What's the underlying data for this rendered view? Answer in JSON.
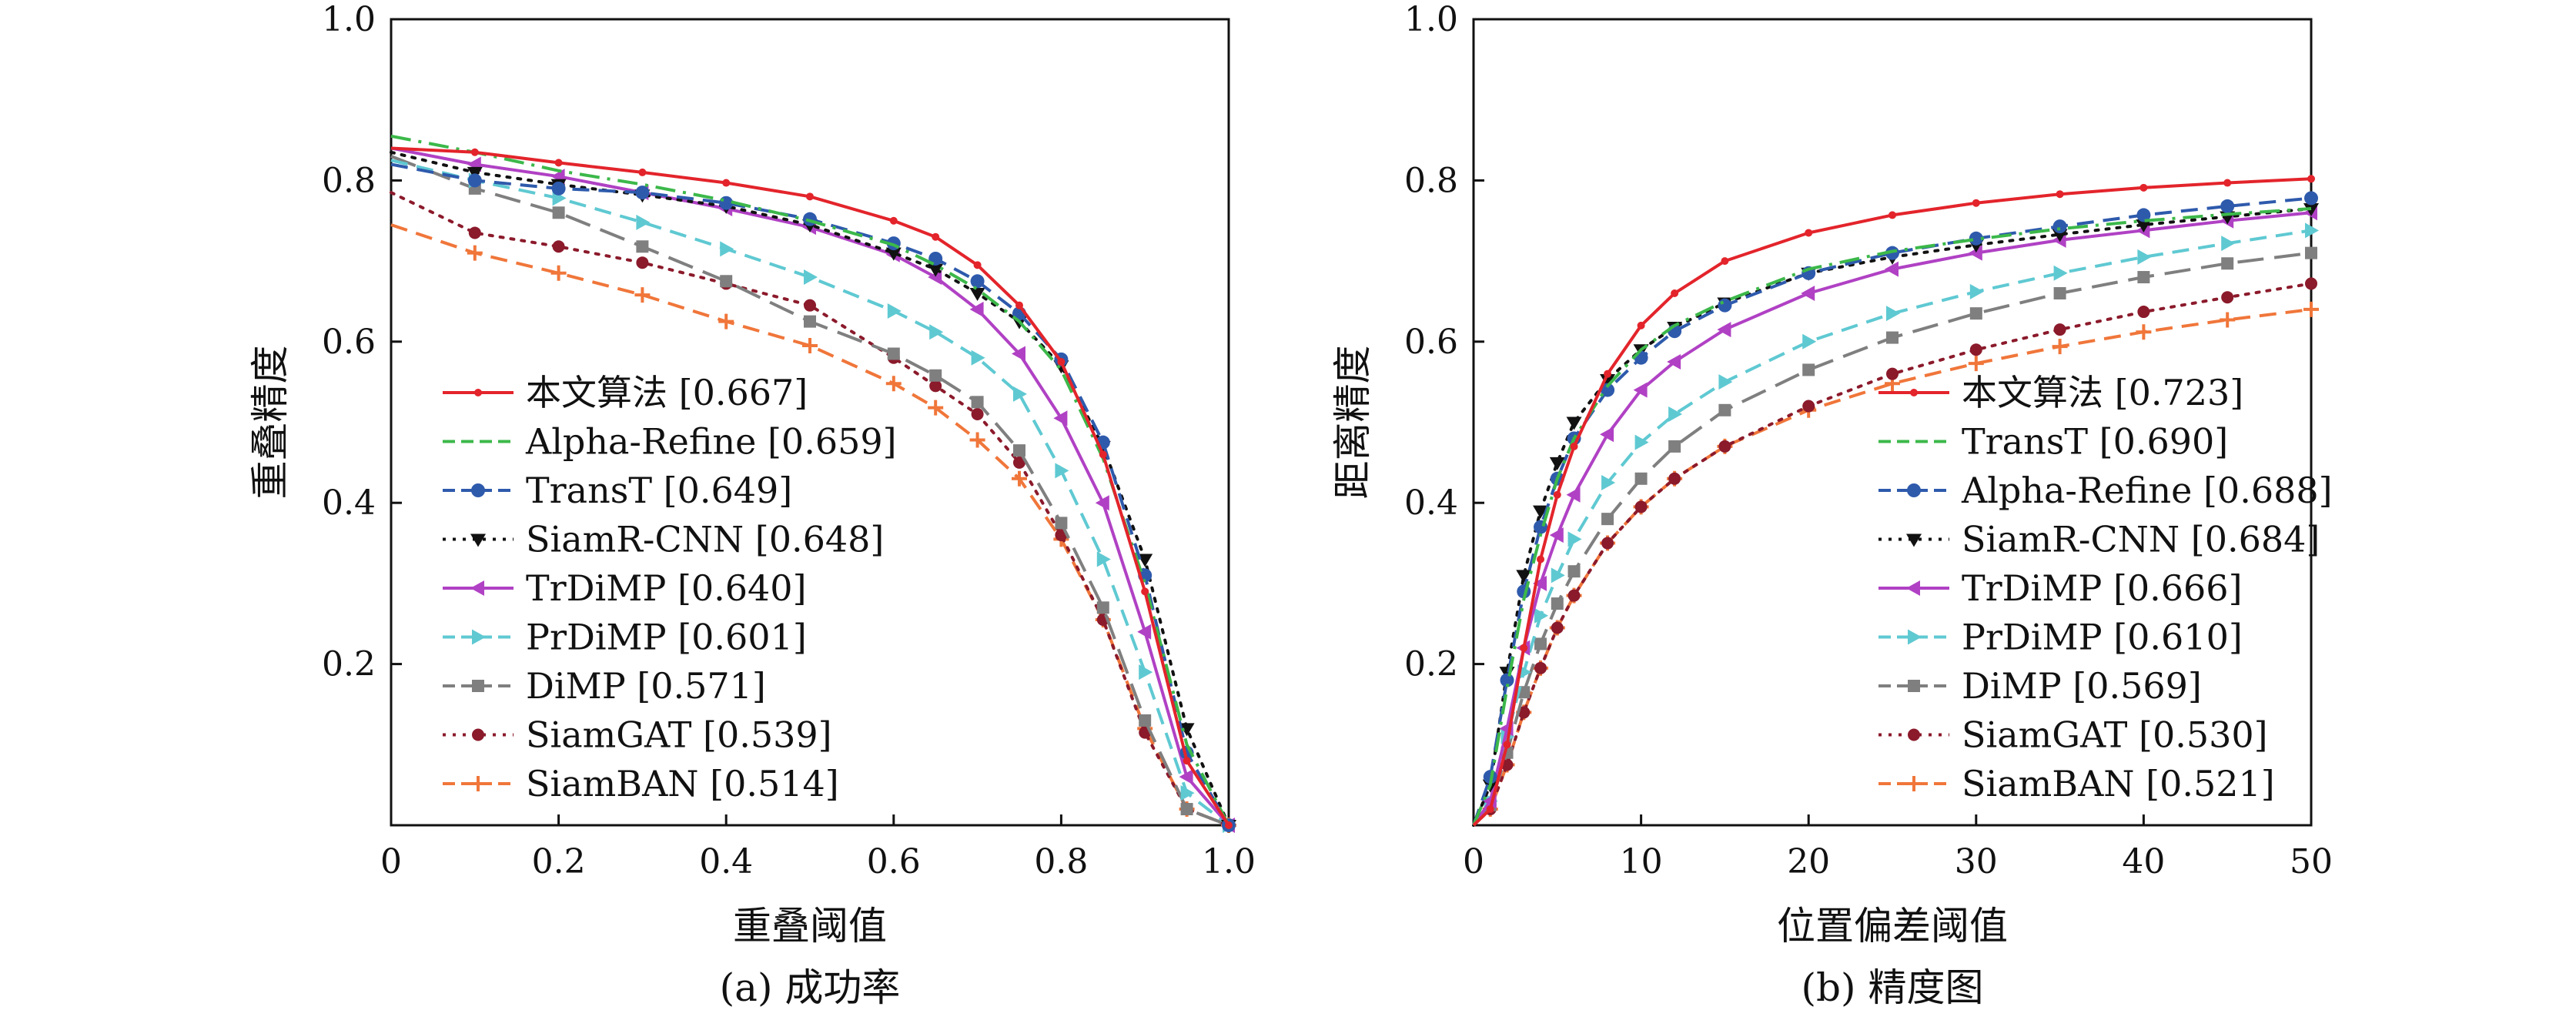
{
  "chart_data": [
    {
      "type": "line",
      "id": "success",
      "caption": "(a)  成功率",
      "title": "",
      "xlabel": "重叠阈值",
      "ylabel": "重叠精度",
      "xlim": [
        0,
        1.0
      ],
      "ylim": [
        0,
        1.0
      ],
      "xticks": [
        0,
        0.2,
        0.4,
        0.6,
        0.8,
        1.0
      ],
      "xtick_labels": [
        "0",
        "0.2",
        "0.4",
        "0.6",
        "0.8",
        "1.0"
      ],
      "yticks": [
        0.2,
        0.4,
        0.6,
        0.8,
        1.0
      ],
      "ytick_labels": [
        "0.2",
        "0.4",
        "0.6",
        "0.8",
        "1.0"
      ],
      "grid": false,
      "legend_position": "bottom-left",
      "series": [
        {
          "name": "本文算法 [0.667]",
          "color": "#e3242b",
          "dash": "solid",
          "marker": "dot",
          "x": [
            0,
            0.1,
            0.2,
            0.3,
            0.4,
            0.5,
            0.6,
            0.65,
            0.7,
            0.75,
            0.8,
            0.85,
            0.9,
            0.95,
            1.0
          ],
          "y": [
            0.84,
            0.835,
            0.822,
            0.81,
            0.797,
            0.78,
            0.75,
            0.73,
            0.695,
            0.645,
            0.575,
            0.46,
            0.29,
            0.08,
            0.0
          ]
        },
        {
          "name": "Alpha-Refine [0.659]",
          "color": "#3cb84a",
          "dash": "dashdot",
          "marker": "none",
          "x": [
            0,
            0.1,
            0.2,
            0.3,
            0.4,
            0.5,
            0.6,
            0.65,
            0.7,
            0.75,
            0.8,
            0.85,
            0.9,
            0.95,
            1.0
          ],
          "y": [
            0.855,
            0.835,
            0.812,
            0.795,
            0.775,
            0.75,
            0.72,
            0.695,
            0.665,
            0.625,
            0.565,
            0.455,
            0.3,
            0.1,
            0.0
          ]
        },
        {
          "name": "TransT [0.649]",
          "color": "#2e5aac",
          "dash": "dashed",
          "marker": "circle",
          "x": [
            0,
            0.1,
            0.2,
            0.3,
            0.4,
            0.5,
            0.6,
            0.65,
            0.7,
            0.75,
            0.8,
            0.85,
            0.9,
            0.95,
            1.0
          ],
          "y": [
            0.82,
            0.8,
            0.79,
            0.785,
            0.772,
            0.752,
            0.722,
            0.703,
            0.675,
            0.635,
            0.578,
            0.475,
            0.31,
            0.09,
            0.0
          ]
        },
        {
          "name": "SiamR-CNN [0.648]",
          "color": "#111111",
          "dash": "dotted",
          "marker": "triangle-down",
          "x": [
            0,
            0.1,
            0.2,
            0.3,
            0.4,
            0.5,
            0.6,
            0.65,
            0.7,
            0.75,
            0.8,
            0.85,
            0.9,
            0.95,
            1.0
          ],
          "y": [
            0.835,
            0.81,
            0.795,
            0.782,
            0.768,
            0.745,
            0.71,
            0.69,
            0.66,
            0.625,
            0.57,
            0.47,
            0.33,
            0.12,
            0.0
          ]
        },
        {
          "name": "TrDiMP [0.640]",
          "color": "#b041c4",
          "dash": "solid",
          "marker": "triangle-left",
          "x": [
            0,
            0.1,
            0.2,
            0.3,
            0.4,
            0.5,
            0.6,
            0.65,
            0.7,
            0.75,
            0.8,
            0.85,
            0.9,
            0.95,
            1.0
          ],
          "y": [
            0.84,
            0.82,
            0.805,
            0.785,
            0.765,
            0.742,
            0.708,
            0.68,
            0.64,
            0.585,
            0.505,
            0.4,
            0.24,
            0.06,
            0.0
          ]
        },
        {
          "name": "PrDiMP [0.601]",
          "color": "#5fc9d2",
          "dash": "dashed",
          "marker": "triangle-right",
          "x": [
            0,
            0.1,
            0.2,
            0.3,
            0.4,
            0.5,
            0.6,
            0.65,
            0.7,
            0.75,
            0.8,
            0.85,
            0.9,
            0.95,
            1.0
          ],
          "y": [
            0.825,
            0.8,
            0.778,
            0.748,
            0.715,
            0.68,
            0.638,
            0.612,
            0.58,
            0.535,
            0.44,
            0.33,
            0.19,
            0.04,
            0.0
          ]
        },
        {
          "name": "DiMP [0.571]",
          "color": "#7f7f7f",
          "dash": "longdash",
          "marker": "square",
          "x": [
            0,
            0.1,
            0.2,
            0.3,
            0.4,
            0.5,
            0.6,
            0.65,
            0.7,
            0.75,
            0.8,
            0.85,
            0.9,
            0.95,
            1.0
          ],
          "y": [
            0.83,
            0.79,
            0.76,
            0.718,
            0.675,
            0.625,
            0.585,
            0.558,
            0.525,
            0.465,
            0.375,
            0.27,
            0.13,
            0.02,
            0.0
          ]
        },
        {
          "name": "SiamGAT [0.539]",
          "color": "#8b1a2b",
          "dash": "dotted",
          "marker": "hexagon",
          "x": [
            0,
            0.1,
            0.2,
            0.3,
            0.4,
            0.5,
            0.6,
            0.65,
            0.7,
            0.75,
            0.8,
            0.85,
            0.9,
            0.95,
            1.0
          ],
          "y": [
            0.785,
            0.735,
            0.718,
            0.698,
            0.672,
            0.645,
            0.58,
            0.545,
            0.51,
            0.45,
            0.36,
            0.255,
            0.115,
            0.02,
            0.0
          ]
        },
        {
          "name": "SiamBAN [0.514]",
          "color": "#f0763a",
          "dash": "dashed",
          "marker": "plus",
          "x": [
            0,
            0.1,
            0.2,
            0.3,
            0.4,
            0.5,
            0.6,
            0.65,
            0.7,
            0.75,
            0.8,
            0.85,
            0.9,
            0.95,
            1.0
          ],
          "y": [
            0.745,
            0.71,
            0.685,
            0.658,
            0.625,
            0.595,
            0.548,
            0.518,
            0.478,
            0.43,
            0.355,
            0.255,
            0.12,
            0.02,
            0.0
          ]
        }
      ]
    },
    {
      "type": "line",
      "id": "precision",
      "caption": "(b)  精度图",
      "title": "",
      "xlabel": "位置偏差阈值",
      "ylabel": "距离精度",
      "xlim": [
        0,
        50
      ],
      "ylim": [
        0,
        1.0
      ],
      "xticks": [
        0,
        10,
        20,
        30,
        40,
        50
      ],
      "xtick_labels": [
        "0",
        "10",
        "20",
        "30",
        "40",
        "50"
      ],
      "yticks": [
        0.2,
        0.4,
        0.6,
        0.8,
        1.0
      ],
      "ytick_labels": [
        "0.2",
        "0.4",
        "0.6",
        "0.8",
        "1.0"
      ],
      "grid": false,
      "legend_position": "bottom-right",
      "series": [
        {
          "name": "本文算法 [0.723]",
          "color": "#e3242b",
          "dash": "solid",
          "marker": "dot",
          "x": [
            0,
            1,
            2,
            3,
            4,
            5,
            6,
            8,
            10,
            12,
            15,
            20,
            25,
            30,
            35,
            40,
            45,
            50
          ],
          "y": [
            0.0,
            0.02,
            0.1,
            0.22,
            0.33,
            0.41,
            0.47,
            0.56,
            0.62,
            0.66,
            0.7,
            0.735,
            0.757,
            0.772,
            0.783,
            0.791,
            0.797,
            0.802
          ]
        },
        {
          "name": "TransT [0.690]",
          "color": "#3cb84a",
          "dash": "dashdot",
          "marker": "none",
          "x": [
            0,
            1,
            2,
            3,
            4,
            5,
            6,
            8,
            10,
            12,
            15,
            20,
            25,
            30,
            35,
            40,
            45,
            50
          ],
          "y": [
            0.0,
            0.05,
            0.17,
            0.28,
            0.36,
            0.43,
            0.48,
            0.545,
            0.59,
            0.62,
            0.65,
            0.69,
            0.712,
            0.727,
            0.74,
            0.75,
            0.758,
            0.765
          ]
        },
        {
          "name": "Alpha-Refine [0.688]",
          "color": "#2e5aac",
          "dash": "dashed",
          "marker": "circle",
          "x": [
            0,
            1,
            2,
            3,
            4,
            5,
            6,
            8,
            10,
            12,
            15,
            20,
            25,
            30,
            35,
            40,
            45,
            50
          ],
          "y": [
            0.0,
            0.06,
            0.18,
            0.29,
            0.37,
            0.43,
            0.48,
            0.54,
            0.58,
            0.613,
            0.645,
            0.685,
            0.71,
            0.728,
            0.743,
            0.757,
            0.768,
            0.778
          ]
        },
        {
          "name": "SiamR-CNN [0.684]",
          "color": "#111111",
          "dash": "dotted",
          "marker": "triangle-down",
          "x": [
            0,
            1,
            2,
            3,
            4,
            5,
            6,
            8,
            10,
            12,
            15,
            20,
            25,
            30,
            35,
            40,
            45,
            50
          ],
          "y": [
            0.0,
            0.05,
            0.19,
            0.31,
            0.39,
            0.45,
            0.5,
            0.553,
            0.59,
            0.618,
            0.648,
            0.685,
            0.705,
            0.72,
            0.733,
            0.745,
            0.755,
            0.765
          ]
        },
        {
          "name": "TrDiMP [0.666]",
          "color": "#b041c4",
          "dash": "solid",
          "marker": "triangle-left",
          "x": [
            0,
            1,
            2,
            3,
            4,
            5,
            6,
            8,
            10,
            12,
            15,
            20,
            25,
            30,
            35,
            40,
            45,
            50
          ],
          "y": [
            0.0,
            0.03,
            0.12,
            0.22,
            0.3,
            0.36,
            0.41,
            0.485,
            0.54,
            0.575,
            0.615,
            0.66,
            0.69,
            0.71,
            0.726,
            0.738,
            0.75,
            0.76
          ]
        },
        {
          "name": "PrDiMP [0.610]",
          "color": "#5fc9d2",
          "dash": "dashed",
          "marker": "triangle-right",
          "x": [
            0,
            1,
            2,
            3,
            4,
            5,
            6,
            8,
            10,
            12,
            15,
            20,
            25,
            30,
            35,
            40,
            45,
            50
          ],
          "y": [
            0.0,
            0.03,
            0.11,
            0.19,
            0.26,
            0.31,
            0.355,
            0.425,
            0.475,
            0.51,
            0.55,
            0.6,
            0.635,
            0.662,
            0.685,
            0.705,
            0.722,
            0.738
          ]
        },
        {
          "name": "DiMP [0.569]",
          "color": "#7f7f7f",
          "dash": "longdash",
          "marker": "square",
          "x": [
            0,
            1,
            2,
            3,
            4,
            5,
            6,
            8,
            10,
            12,
            15,
            20,
            25,
            30,
            35,
            40,
            45,
            50
          ],
          "y": [
            0.0,
            0.025,
            0.09,
            0.165,
            0.225,
            0.275,
            0.315,
            0.38,
            0.43,
            0.47,
            0.515,
            0.565,
            0.605,
            0.635,
            0.66,
            0.68,
            0.697,
            0.71
          ]
        },
        {
          "name": "SiamGAT [0.530]",
          "color": "#8b1a2b",
          "dash": "dotted",
          "marker": "hexagon",
          "x": [
            0,
            1,
            2,
            3,
            4,
            5,
            6,
            8,
            10,
            12,
            15,
            20,
            25,
            30,
            35,
            40,
            45,
            50
          ],
          "y": [
            0.0,
            0.02,
            0.075,
            0.14,
            0.195,
            0.245,
            0.285,
            0.35,
            0.395,
            0.43,
            0.47,
            0.52,
            0.56,
            0.59,
            0.615,
            0.637,
            0.655,
            0.672
          ]
        },
        {
          "name": "SiamBAN [0.521]",
          "color": "#f0763a",
          "dash": "dashed",
          "marker": "plus",
          "x": [
            0,
            1,
            2,
            3,
            4,
            5,
            6,
            8,
            10,
            12,
            15,
            20,
            25,
            30,
            35,
            40,
            45,
            50
          ],
          "y": [
            0.0,
            0.02,
            0.075,
            0.14,
            0.195,
            0.245,
            0.285,
            0.35,
            0.395,
            0.43,
            0.47,
            0.515,
            0.548,
            0.573,
            0.594,
            0.612,
            0.627,
            0.64
          ]
        }
      ]
    }
  ]
}
